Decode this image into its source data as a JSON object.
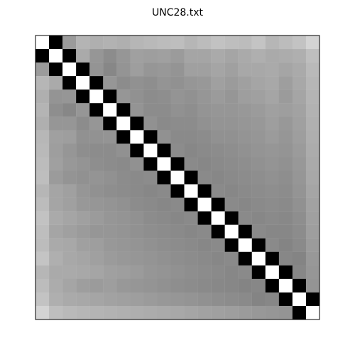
{
  "chart_data": {
    "type": "heatmap",
    "title": "UNC28.txt",
    "xlabel": "",
    "ylabel": "",
    "grid": false,
    "colormap": "grayscale",
    "rows": 21,
    "cols": 21,
    "diagonal": "white",
    "near_diagonal": "black",
    "off_diagonal_gray_values": [
      [
        null,
        null,
        155,
        180,
        175,
        178,
        175,
        182,
        185,
        188,
        190,
        182,
        188,
        194,
        190,
        188,
        196,
        182,
        188,
        195,
        212
      ],
      [
        null,
        null,
        null,
        170,
        150,
        140,
        150,
        160,
        158,
        160,
        155,
        165,
        165,
        170,
        165,
        170,
        175,
        170,
        172,
        175,
        190
      ],
      [
        155,
        null,
        null,
        null,
        148,
        135,
        148,
        158,
        150,
        152,
        148,
        160,
        160,
        165,
        160,
        168,
        168,
        170,
        165,
        170,
        185
      ],
      [
        182,
        170,
        null,
        null,
        null,
        150,
        140,
        145,
        142,
        148,
        145,
        150,
        152,
        160,
        155,
        160,
        165,
        168,
        158,
        168,
        182
      ],
      [
        175,
        148,
        150,
        null,
        null,
        null,
        150,
        145,
        140,
        142,
        148,
        145,
        150,
        155,
        150,
        158,
        160,
        165,
        155,
        165,
        180
      ],
      [
        180,
        142,
        135,
        150,
        null,
        null,
        null,
        148,
        140,
        140,
        145,
        142,
        148,
        150,
        150,
        152,
        155,
        160,
        158,
        162,
        178
      ],
      [
        175,
        150,
        150,
        140,
        150,
        null,
        null,
        null,
        145,
        138,
        140,
        140,
        145,
        148,
        148,
        150,
        152,
        158,
        152,
        160,
        176
      ],
      [
        183,
        160,
        158,
        145,
        146,
        148,
        null,
        null,
        null,
        145,
        138,
        138,
        140,
        145,
        145,
        148,
        150,
        155,
        150,
        158,
        174
      ],
      [
        185,
        158,
        150,
        142,
        140,
        140,
        145,
        null,
        null,
        null,
        140,
        135,
        138,
        140,
        142,
        145,
        148,
        150,
        148,
        155,
        172
      ],
      [
        188,
        160,
        152,
        148,
        142,
        140,
        138,
        145,
        null,
        null,
        null,
        138,
        135,
        138,
        140,
        142,
        145,
        148,
        145,
        152,
        170
      ],
      [
        190,
        155,
        148,
        145,
        148,
        145,
        140,
        138,
        140,
        null,
        null,
        null,
        138,
        135,
        138,
        140,
        142,
        145,
        142,
        150,
        168
      ],
      [
        182,
        165,
        160,
        150,
        145,
        142,
        140,
        138,
        135,
        138,
        null,
        null,
        null,
        138,
        135,
        138,
        140,
        142,
        140,
        148,
        165
      ],
      [
        188,
        165,
        160,
        152,
        150,
        148,
        145,
        140,
        138,
        135,
        138,
        null,
        null,
        null,
        138,
        135,
        138,
        140,
        138,
        145,
        162
      ],
      [
        194,
        170,
        165,
        160,
        155,
        150,
        148,
        145,
        140,
        138,
        135,
        138,
        null,
        null,
        null,
        138,
        135,
        138,
        136,
        142,
        160
      ],
      [
        190,
        165,
        160,
        155,
        150,
        150,
        148,
        145,
        142,
        140,
        138,
        135,
        138,
        null,
        null,
        null,
        138,
        135,
        135,
        140,
        158
      ],
      [
        188,
        170,
        168,
        160,
        158,
        152,
        150,
        148,
        145,
        142,
        140,
        138,
        135,
        138,
        null,
        null,
        null,
        138,
        132,
        138,
        155
      ],
      [
        196,
        175,
        168,
        165,
        160,
        155,
        152,
        150,
        148,
        145,
        142,
        140,
        138,
        135,
        138,
        null,
        null,
        null,
        135,
        132,
        152
      ],
      [
        182,
        170,
        170,
        168,
        165,
        160,
        158,
        155,
        150,
        148,
        145,
        142,
        140,
        138,
        135,
        138,
        null,
        null,
        null,
        135,
        150
      ],
      [
        188,
        172,
        165,
        158,
        155,
        158,
        152,
        150,
        148,
        145,
        142,
        140,
        138,
        136,
        135,
        132,
        135,
        null,
        null,
        null,
        148
      ],
      [
        195,
        175,
        170,
        168,
        165,
        162,
        160,
        158,
        155,
        152,
        150,
        148,
        145,
        142,
        140,
        138,
        132,
        135,
        null,
        null,
        null
      ],
      [
        212,
        190,
        185,
        182,
        180,
        178,
        176,
        174,
        172,
        170,
        168,
        165,
        162,
        160,
        158,
        155,
        152,
        150,
        148,
        null,
        null
      ]
    ]
  }
}
